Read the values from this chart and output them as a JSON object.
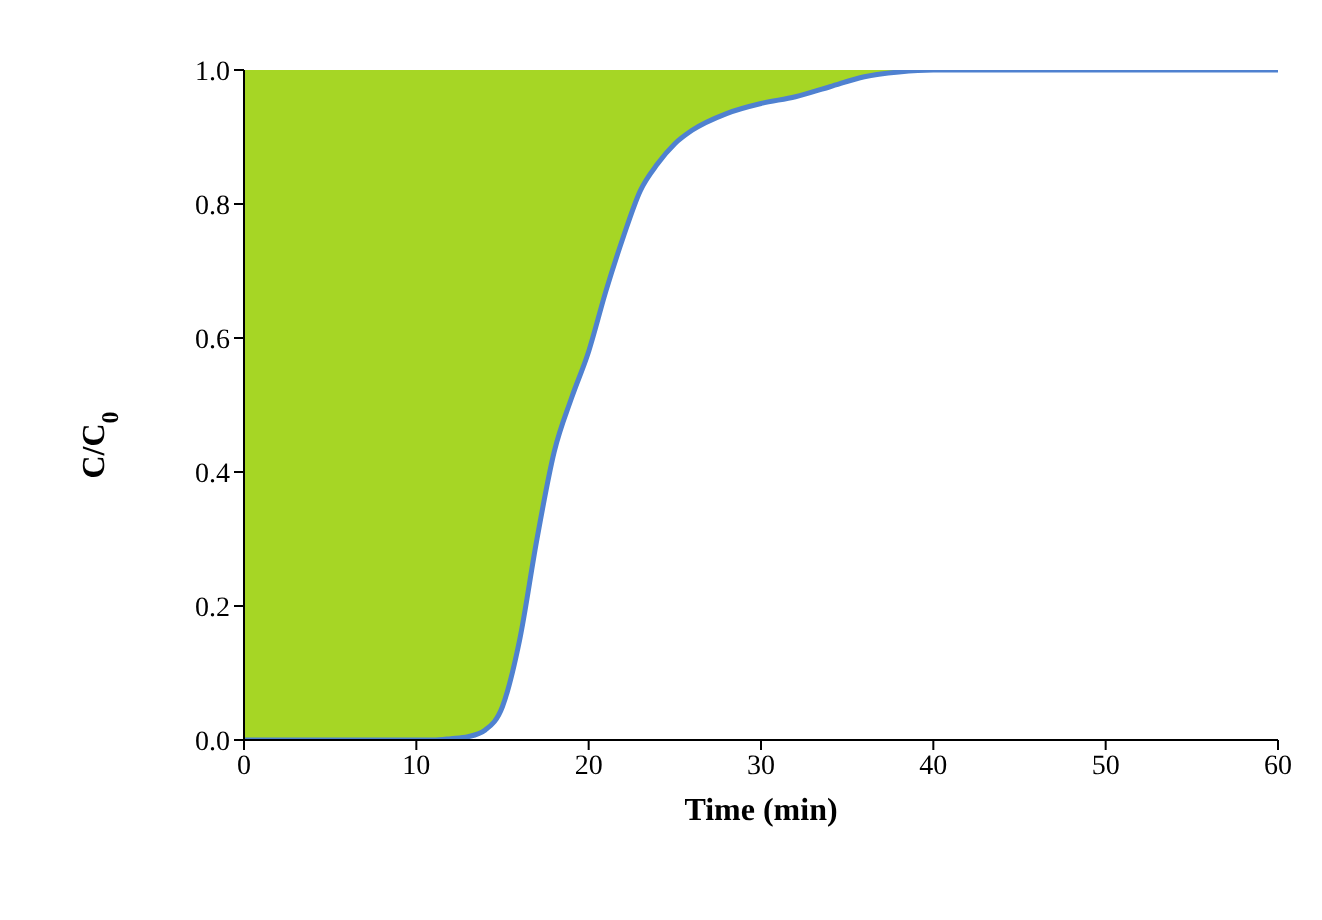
{
  "chart_data": {
    "type": "line",
    "xlabel": "Time (min)",
    "ylabel": "C/C$_{0}$",
    "x": [
      0,
      11,
      12,
      13,
      14,
      15,
      16,
      17,
      18,
      19,
      20,
      21,
      22,
      23,
      24,
      25,
      26,
      28,
      30,
      32,
      34,
      36,
      38,
      40,
      60
    ],
    "series": [
      {
        "color": "#4f81d0",
        "values": [
          0,
          0,
          0.002,
          0.005,
          0.015,
          0.05,
          0.15,
          0.3,
          0.43,
          0.51,
          0.58,
          0.67,
          0.75,
          0.82,
          0.86,
          0.89,
          0.91,
          0.935,
          0.95,
          0.96,
          0.975,
          0.99,
          0.997,
          1,
          1
        ],
        "lower": [
          0,
          0,
          0.002,
          0.005,
          0.015,
          0.05,
          0.15,
          0.3,
          0.43,
          0.51,
          0.58,
          0.67,
          0.75,
          0.82,
          0.86,
          0.89,
          0.91,
          0.935,
          0.95,
          0.96,
          0.975,
          0.99,
          0.997,
          1,
          1
        ],
        "upper": [
          1,
          1,
          1,
          1,
          1,
          1,
          1,
          1,
          1,
          1,
          1,
          1,
          1,
          1,
          1,
          1,
          1,
          1,
          1,
          1,
          1,
          1,
          1,
          1,
          1
        ]
      }
    ],
    "xlim": [
      0,
      60
    ],
    "xticks": [
      0,
      10,
      20,
      30,
      40,
      50,
      60
    ],
    "ylim": [
      0,
      1
    ],
    "yticks": [
      {
        "value": 0,
        "label": "0.0"
      },
      {
        "value": 0.2,
        "label": "0.2"
      },
      {
        "value": 0.4,
        "label": "0.4"
      },
      {
        "value": 0.6,
        "label": "0.6"
      },
      {
        "value": 0.8,
        "label": "0.8"
      },
      {
        "value": 1,
        "label": "1.0"
      }
    ],
    "grid": false,
    "legend": false,
    "marker": "none",
    "line_style": "solid"
  }
}
